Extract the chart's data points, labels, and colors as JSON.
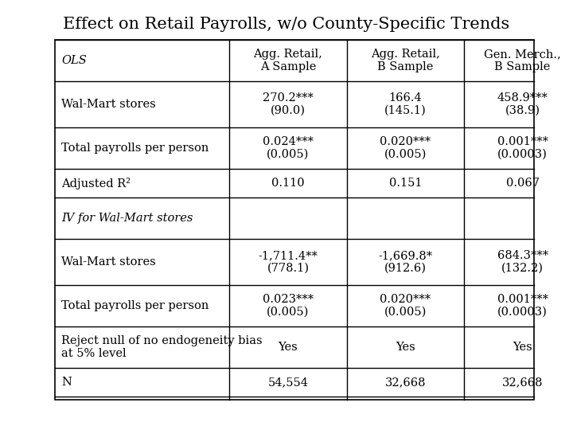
{
  "title": "Effect on Retail Payrolls, w/o County-Specific Trends",
  "col_headers": [
    "",
    "Agg. Retail,\nA Sample",
    "Agg. Retail,\nB Sample",
    "Gen. Merch.,\nB Sample"
  ],
  "rows": [
    {
      "label": "OLS",
      "italic": true,
      "values": [
        "",
        "",
        ""
      ]
    },
    {
      "label": "Wal-Mart stores",
      "italic": false,
      "values": [
        "270.2***\n(90.0)",
        "166.4\n(145.1)",
        "458.9***\n(38.9)"
      ]
    },
    {
      "label": "Total payrolls per person",
      "italic": false,
      "values": [
        "0.024***\n(0.005)",
        "0.020***\n(0.005)",
        "0.001***\n(0.0003)"
      ]
    },
    {
      "label": "Adjusted R²",
      "italic": false,
      "values": [
        "0.110",
        "0.151",
        "0.067"
      ]
    },
    {
      "label": "IV for Wal-Mart stores",
      "italic": true,
      "values": [
        "",
        "",
        ""
      ]
    },
    {
      "label": "Wal-Mart stores",
      "italic": false,
      "values": [
        "-1,711.4**\n(778.1)",
        "-1,669.8*\n(912.6)",
        "684.3***\n(132.2)"
      ]
    },
    {
      "label": "Total payrolls per person",
      "italic": false,
      "values": [
        "0.023***\n(0.005)",
        "0.020***\n(0.005)",
        "0.001***\n(0.0003)"
      ]
    },
    {
      "label": "Reject null of no endogeneity bias\nat 5% level",
      "italic": false,
      "values": [
        "Yes",
        "Yes",
        "Yes"
      ]
    },
    {
      "label": "N",
      "italic": false,
      "values": [
        "54,554",
        "32,668",
        "32,668"
      ]
    }
  ],
  "background_color": "#ffffff",
  "title_fontsize": 15,
  "header_fontsize": 10.5,
  "cell_fontsize": 10.5,
  "label_fontsize": 10.5
}
